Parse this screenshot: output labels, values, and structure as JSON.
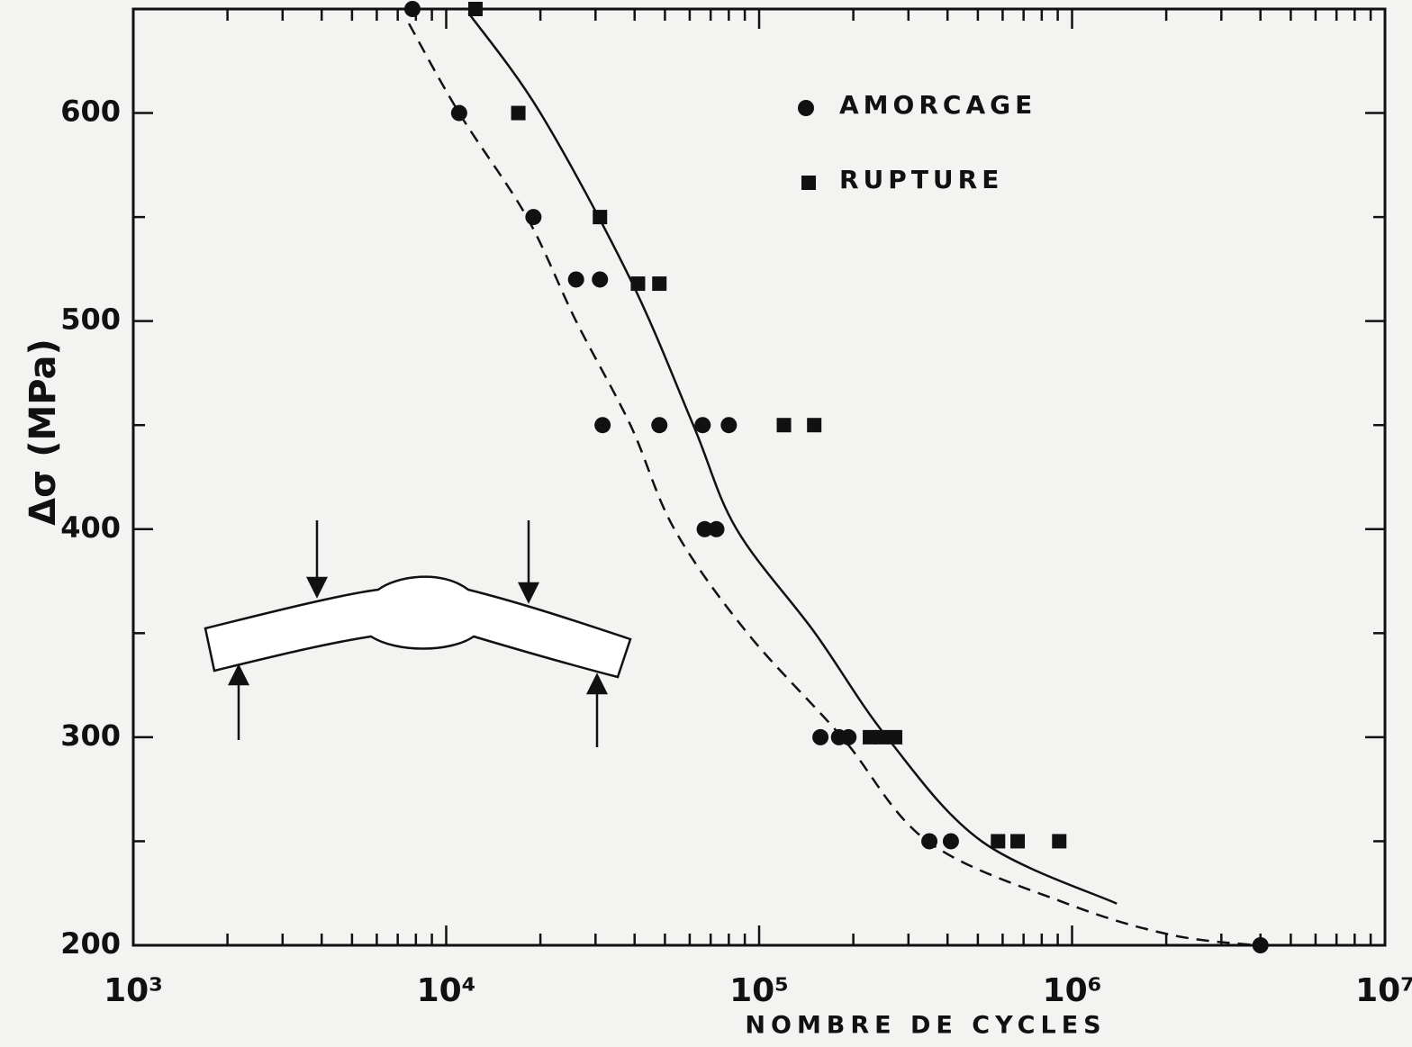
{
  "chart_data": {
    "type": "scatter",
    "xlabel": "NOMBRE DE CYCLES",
    "ylabel": "Δσ (MPa)",
    "xscale": "log",
    "xlim": [
      1000,
      10000000
    ],
    "ylim": [
      200,
      650
    ],
    "xticks": [
      {
        "value": 1000,
        "label": "10³"
      },
      {
        "value": 10000,
        "label": "10⁴"
      },
      {
        "value": 100000,
        "label": "10⁵"
      },
      {
        "value": 1000000,
        "label": "10⁶"
      },
      {
        "value": 10000000,
        "label": "10⁷"
      }
    ],
    "xminor_ticks": [
      2000,
      3000,
      4000,
      5000,
      6000,
      7000,
      8000,
      9000,
      20000,
      30000,
      40000,
      50000,
      60000,
      70000,
      80000,
      90000,
      200000,
      300000,
      400000,
      500000,
      600000,
      700000,
      800000,
      900000,
      2000000,
      3000000,
      4000000,
      5000000,
      6000000,
      7000000,
      8000000,
      9000000
    ],
    "yticks": [
      200,
      300,
      400,
      500,
      600
    ],
    "yminor_ticks": [
      250,
      350,
      450,
      550
    ],
    "legend": "upper right",
    "color": "#111111",
    "series": [
      {
        "name": "AMORCAGE",
        "marker": "circle",
        "x": [
          7800,
          11000,
          19000,
          26000,
          31000,
          31600,
          48000,
          66000,
          80000,
          67000,
          73000,
          157000,
          180000,
          193000,
          350000,
          410000,
          4000000
        ],
        "values": [
          650,
          600,
          550,
          520,
          520,
          450,
          450,
          450,
          450,
          400,
          400,
          300,
          300,
          300,
          250,
          250,
          200
        ]
      },
      {
        "name": "RUPTURE",
        "marker": "square",
        "x": [
          12400,
          17000,
          31000,
          41000,
          48000,
          120000,
          150000,
          226000,
          246000,
          272000,
          580000,
          670000,
          910000
        ],
        "values": [
          650,
          600,
          550,
          518,
          518,
          450,
          450,
          300,
          300,
          300,
          250,
          250,
          250
        ]
      }
    ],
    "curves": [
      {
        "dashed": false,
        "x": [
          11800,
          20000,
          38800,
          61600,
          84700,
          151000,
          256000,
          514000,
          1390000
        ],
        "values": [
          648,
          600,
          520,
          450,
          400,
          350,
          300,
          250,
          220
        ]
      },
      {
        "dashed": true,
        "x": [
          7600,
          11000,
          18100,
          26000,
          38800,
          53600,
          91800,
          184000,
          345000,
          964000,
          2070000,
          3870000
        ],
        "values": [
          643,
          600,
          550,
          500,
          450,
          400,
          350,
          300,
          250,
          220,
          205,
          200
        ]
      }
    ]
  }
}
